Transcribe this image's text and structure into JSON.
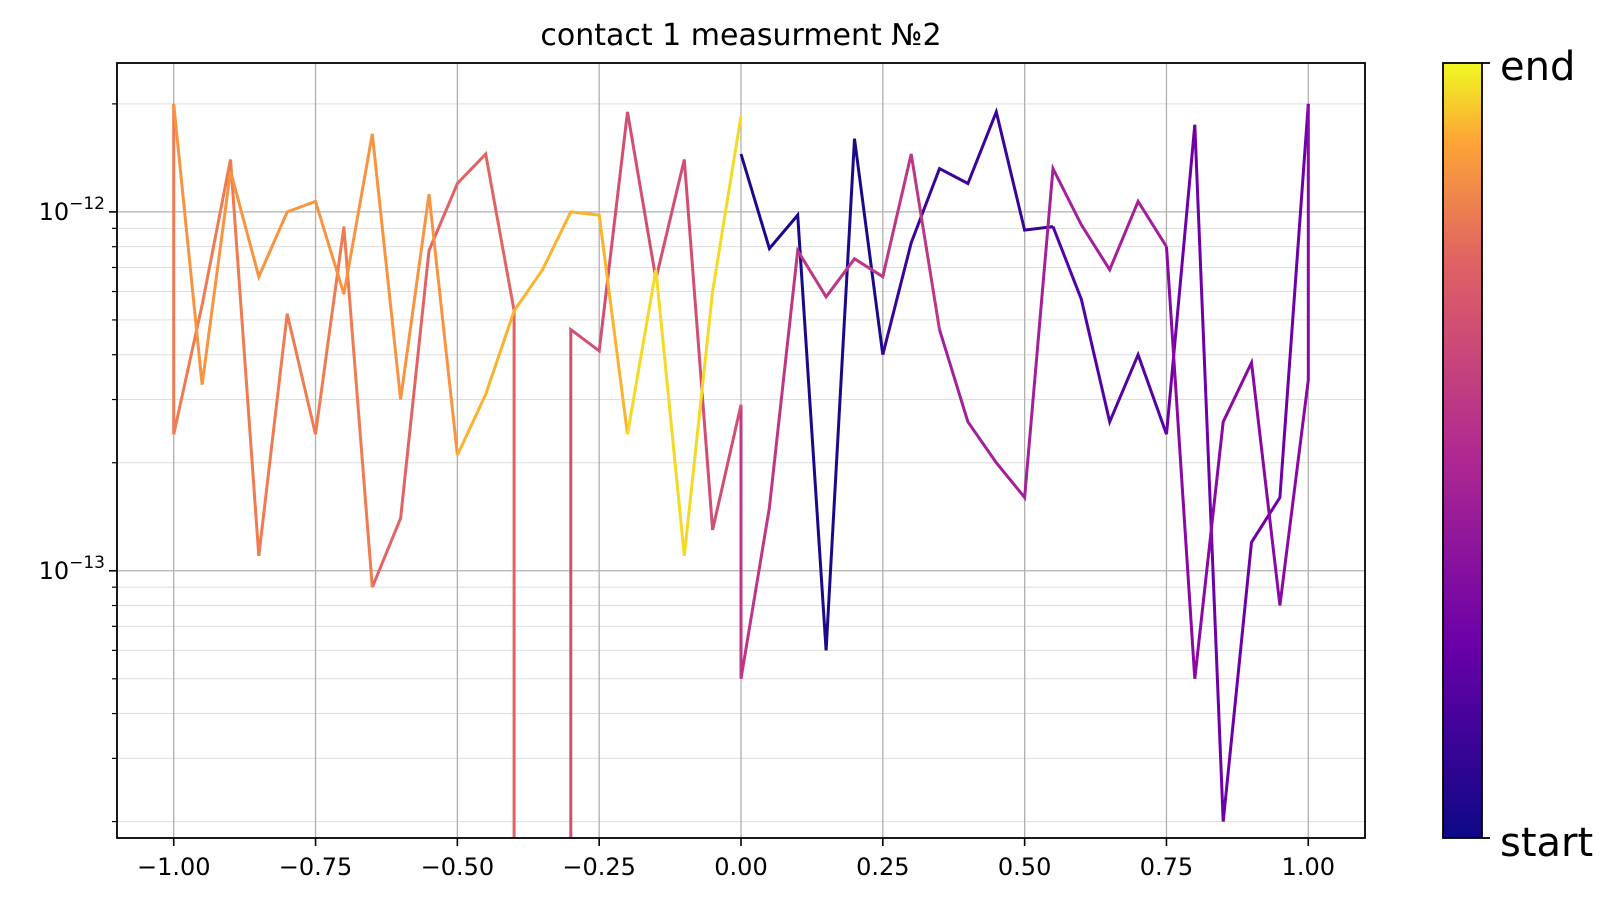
{
  "chart_data": {
    "type": "line",
    "title": "contact 1 measurment №2",
    "xlabel": "",
    "ylabel": "",
    "y_scale": "log",
    "xlim": [
      -1.1,
      1.1
    ],
    "ylim": [
      1.8e-14,
      2.6e-12
    ],
    "grid": true,
    "x_ticks": [
      -1.0,
      -0.75,
      -0.5,
      -0.25,
      0.0,
      0.25,
      0.5,
      0.75,
      1.0
    ],
    "x_tick_labels": [
      "−1.00",
      "−0.75",
      "−0.50",
      "−0.25",
      "0.00",
      "0.25",
      "0.50",
      "0.75",
      "1.00"
    ],
    "y_ticks": [
      1e-13,
      1e-12
    ],
    "y_tick_labels": [
      {
        "base": "10",
        "exp": "−13"
      },
      {
        "base": "10",
        "exp": "−12"
      }
    ],
    "colormap": "plasma",
    "colorbar": {
      "start_label": "start",
      "end_label": "end",
      "colors": [
        "#0d0887",
        "#6a00a8",
        "#b12a90",
        "#e16462",
        "#fca636",
        "#f0f921"
      ]
    },
    "series": [
      {
        "color": "#1a0a8a",
        "x": [
          0.0,
          0.05,
          0.1,
          0.15,
          0.2,
          0.25
        ],
        "y": [
          1.45e-12,
          7.9e-13,
          9.8e-13,
          6e-14,
          1.6e-12,
          4e-13
        ]
      },
      {
        "color": "#3a049a",
        "x": [
          0.25,
          0.3,
          0.35,
          0.4,
          0.45,
          0.5,
          0.55
        ],
        "y": [
          4e-13,
          8.2e-13,
          1.32e-12,
          1.2e-12,
          1.9e-12,
          8.9e-13,
          9.1e-13
        ]
      },
      {
        "color": "#5302a3",
        "x": [
          0.55,
          0.6,
          0.65,
          0.7,
          0.75
        ],
        "y": [
          9.1e-13,
          5.7e-13,
          2.6e-13,
          4e-13,
          2.4e-13
        ]
      },
      {
        "color": "#6e00a8",
        "x": [
          0.75,
          0.8,
          0.85,
          0.9,
          0.95,
          1.0
        ],
        "y": [
          2.4e-13,
          1.75e-12,
          2e-14,
          1.2e-13,
          1.6e-13,
          2e-12
        ]
      },
      {
        "color": "#8a09a5",
        "x": [
          1.0,
          1.0,
          0.95,
          0.9,
          0.85,
          0.8,
          0.75
        ],
        "y": [
          2e-12,
          3.4e-13,
          8e-14,
          3.8e-13,
          2.6e-13,
          5e-14,
          8e-13
        ]
      },
      {
        "color": "#a2219a",
        "x": [
          0.75,
          0.7,
          0.65,
          0.6,
          0.55,
          0.5,
          0.45,
          0.4,
          0.35
        ],
        "y": [
          8e-13,
          1.07e-12,
          6.9e-13,
          9.2e-13,
          1.32e-12,
          1.6e-13,
          2e-13,
          2.6e-13,
          4.7e-13
        ]
      },
      {
        "color": "#bd3786",
        "x": [
          0.35,
          0.3,
          0.25,
          0.2,
          0.15,
          0.1,
          0.05,
          0.0,
          0.0
        ],
        "y": [
          4.7e-13,
          1.45e-12,
          6.6e-13,
          7.4e-13,
          5.8e-13,
          7.8e-13,
          1.5e-13,
          5e-14,
          2.9e-13
        ]
      },
      {
        "color": "#d24f72",
        "x": [
          0.0,
          -0.05,
          -0.1,
          -0.15,
          -0.2,
          -0.25,
          -0.3,
          -0.3
        ],
        "y": [
          2.9e-13,
          1.3e-13,
          1.4e-12,
          6.5e-13,
          1.9e-12,
          4.1e-13,
          4.7e-13,
          1e-14
        ]
      },
      {
        "color": "#e16462",
        "x": [
          -0.4,
          -0.4,
          -0.45,
          -0.5,
          -0.55,
          -0.6,
          -0.65
        ],
        "y": [
          1e-14,
          5.3e-13,
          1.45e-12,
          1.2e-12,
          7.8e-13,
          1.4e-13,
          9e-14
        ]
      },
      {
        "color": "#ee7b51",
        "x": [
          -0.65,
          -0.7,
          -0.75,
          -0.8,
          -0.85,
          -0.9,
          -0.95,
          -1.0,
          -1.0
        ],
        "y": [
          9e-14,
          9.1e-13,
          2.4e-13,
          5.2e-13,
          1.1e-13,
          1.4e-12,
          5.5e-13,
          2.4e-13,
          2e-12
        ]
      },
      {
        "color": "#f89441",
        "x": [
          -1.0,
          -0.95,
          -0.9,
          -0.85,
          -0.8,
          -0.75,
          -0.7,
          -0.65,
          -0.6,
          -0.55,
          -0.5
        ],
        "y": [
          2e-12,
          3.3e-13,
          1.3e-12,
          6.6e-13,
          1e-12,
          1.07e-12,
          5.9e-13,
          1.65e-12,
          3e-13,
          1.12e-12,
          2.1e-13
        ]
      },
      {
        "color": "#fbb32f",
        "x": [
          -0.5,
          -0.45,
          -0.4,
          -0.35,
          -0.3,
          -0.25,
          -0.2
        ],
        "y": [
          2.1e-13,
          3.1e-13,
          5.3e-13,
          6.9e-13,
          1e-12,
          9.8e-13,
          2.4e-13
        ]
      },
      {
        "color": "#f5d924",
        "x": [
          -0.2,
          -0.15,
          -0.1,
          -0.05,
          0.0
        ],
        "y": [
          2.4e-13,
          6.9e-13,
          1.1e-13,
          6e-13,
          1.85e-12
        ]
      }
    ]
  }
}
